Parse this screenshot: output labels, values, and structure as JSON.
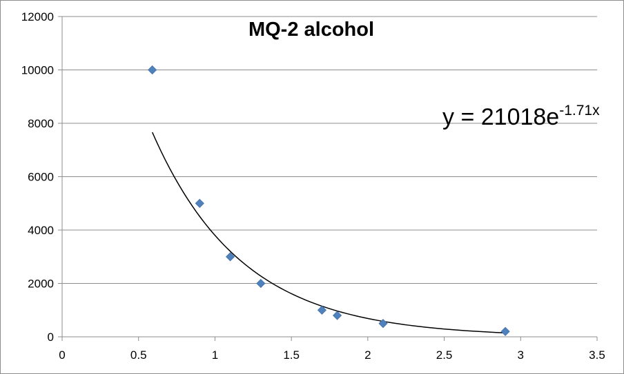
{
  "chart_data": {
    "type": "scatter",
    "title": "MQ-2 alcohol",
    "xlabel": "",
    "ylabel": "",
    "xlim": [
      0,
      3.5
    ],
    "ylim": [
      0,
      12000
    ],
    "x_ticks": [
      "0",
      "0.5",
      "1",
      "1.5",
      "2",
      "2.5",
      "3",
      "3.5"
    ],
    "y_ticks": [
      "0",
      "2000",
      "4000",
      "6000",
      "8000",
      "10000",
      "12000"
    ],
    "grid": "horizontal",
    "series": [
      {
        "points": [
          {
            "x": 0.59,
            "y": 10000
          },
          {
            "x": 0.9,
            "y": 5000
          },
          {
            "x": 1.1,
            "y": 3000
          },
          {
            "x": 1.3,
            "y": 2000
          },
          {
            "x": 1.7,
            "y": 1000
          },
          {
            "x": 1.8,
            "y": 800
          },
          {
            "x": 2.1,
            "y": 500
          },
          {
            "x": 2.9,
            "y": 200
          }
        ],
        "color": "#4f81bd"
      }
    ],
    "trendline": {
      "type": "exponential",
      "a": 21018,
      "b": -1.71,
      "x_range": [
        0.59,
        2.9
      ],
      "color": "#000000",
      "equation_main": "y = 21018e",
      "equation_exp": "-1.71x"
    }
  }
}
